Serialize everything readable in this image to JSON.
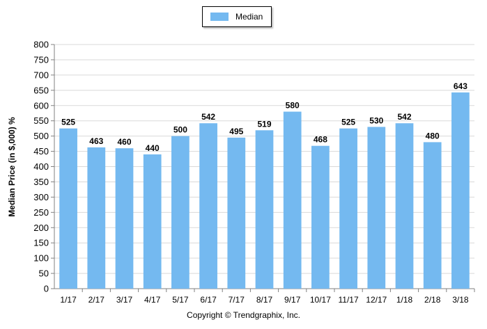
{
  "chart_data": {
    "type": "bar",
    "categories": [
      "1/17",
      "2/17",
      "3/17",
      "4/17",
      "5/17",
      "6/17",
      "7/17",
      "8/17",
      "9/17",
      "10/17",
      "11/17",
      "12/17",
      "1/18",
      "2/18",
      "3/18"
    ],
    "series": [
      {
        "name": "Median",
        "values": [
          525,
          463,
          460,
          440,
          500,
          542,
          495,
          519,
          580,
          468,
          525,
          530,
          542,
          480,
          643
        ],
        "color": "#74b9f0"
      }
    ],
    "ylabel": "Median Price (in $,000) %",
    "xlabel": "",
    "ylim": [
      0,
      800
    ],
    "ytick_step": 50,
    "grid": true,
    "legend_position": "top-center",
    "footer": "Copyright © Trendgraphix, Inc."
  }
}
